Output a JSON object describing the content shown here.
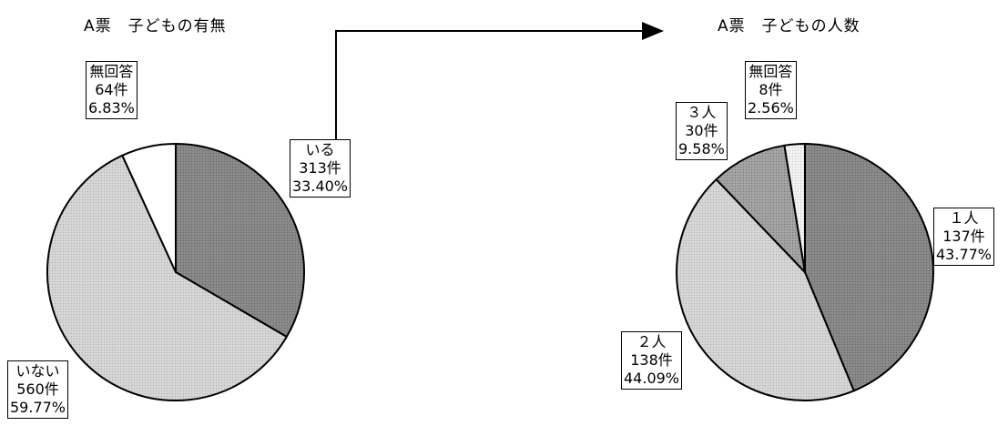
{
  "chart_data": [
    {
      "type": "pie",
      "title": "A票　子どもの有無",
      "slices": [
        {
          "label": "いる",
          "count": "313件",
          "percent": "33.40%",
          "value": 33.4,
          "color": "#7f7f7f"
        },
        {
          "label": "いない",
          "count": "560件",
          "percent": "59.77%",
          "value": 59.77,
          "color": "#d0d0d0"
        },
        {
          "label": "無回答",
          "count": "64件",
          "percent": "6.83%",
          "value": 6.83,
          "color": "#ffffff"
        }
      ]
    },
    {
      "type": "pie",
      "title": "A票　子どもの人数",
      "slices": [
        {
          "label": "１人",
          "count": "137件",
          "percent": "43.77%",
          "value": 43.77,
          "color": "#7f7f7f"
        },
        {
          "label": "２人",
          "count": "138件",
          "percent": "44.09%",
          "value": 44.09,
          "color": "#d0d0d0"
        },
        {
          "label": "３人",
          "count": "30件",
          "percent": "9.58%",
          "value": 9.58,
          "color": "#9a9a9a"
        },
        {
          "label": "無回答",
          "count": "8件",
          "percent": "2.56%",
          "value": 2.56,
          "color": "#ececec"
        }
      ]
    }
  ]
}
